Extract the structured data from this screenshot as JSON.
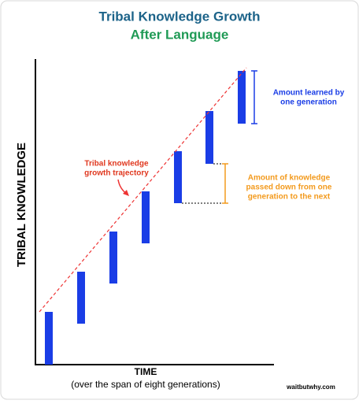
{
  "header": {
    "title": "Tribal Knowledge Growth",
    "subtitle": "After Language"
  },
  "axes": {
    "y_label": "TRIBAL KNOWLEDGE",
    "x_label": "TIME",
    "x_note": "(over the span of eight generations)"
  },
  "annotations": {
    "trajectory": [
      "Tribal knowledge",
      "growth trajectory"
    ],
    "generation": [
      "Amount learned by",
      "one generation"
    ],
    "passed_down": [
      "Amount of knowledge",
      "passed down from one",
      "generation to the next"
    ]
  },
  "credit": "waitbutwhy.com"
}
